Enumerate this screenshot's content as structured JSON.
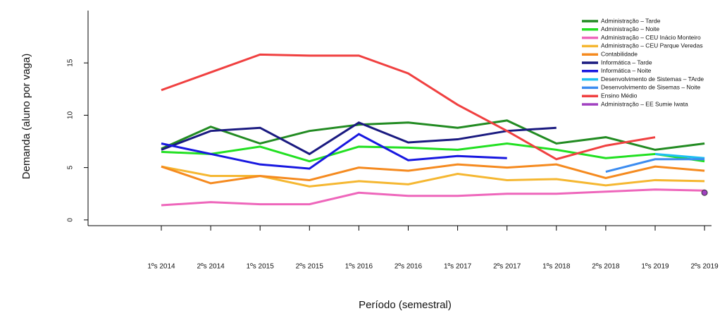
{
  "chart_data": {
    "type": "line",
    "xlabel": "Período (semestral)",
    "ylabel": "Demanda (aluno por vaga)",
    "categories": [
      "1ºs 2014",
      "2ºs 2014",
      "1ºs 2015",
      "2ºs 2015",
      "1ºs 2016",
      "2ºs 2016",
      "1ºs 2017",
      "2ºs 2017",
      "1ºs 2018",
      "2ºs 2018",
      "1ºs 2019",
      "2ºs 2019"
    ],
    "ylim": [
      -0.55,
      20
    ],
    "yticks": [
      0,
      5,
      10,
      15
    ],
    "legend": "top-right",
    "series": [
      {
        "name": "Administração – Tarde",
        "color": "#228b22",
        "values": [
          6.8,
          8.9,
          7.3,
          8.5,
          9.1,
          9.3,
          8.8,
          9.5,
          7.3,
          7.9,
          6.7,
          7.3
        ]
      },
      {
        "name": "Administração – Noite",
        "color": "#22e022",
        "values": [
          6.5,
          6.3,
          7.0,
          5.6,
          7.0,
          6.9,
          6.7,
          7.3,
          6.7,
          5.9,
          6.3,
          5.6
        ]
      },
      {
        "name": "Administração – CEU Inácio Monteiro",
        "color": "#ee66bb",
        "values": [
          1.4,
          1.7,
          1.5,
          1.5,
          2.6,
          2.3,
          2.3,
          2.5,
          2.5,
          2.7,
          2.9,
          2.8
        ]
      },
      {
        "name": "Administração – CEU Parque Veredas",
        "color": "#f5b731",
        "values": [
          5.1,
          4.2,
          4.2,
          3.2,
          3.7,
          3.4,
          4.4,
          3.8,
          3.9,
          3.3,
          3.8,
          3.7
        ]
      },
      {
        "name": "Contabilidade",
        "color": "#f58a1f",
        "values": [
          5.1,
          3.5,
          4.2,
          3.8,
          5.0,
          4.7,
          5.3,
          5.0,
          5.3,
          4.0,
          5.1,
          4.7
        ]
      },
      {
        "name": "Informática – Tarde",
        "color": "#1a1a80",
        "values": [
          6.7,
          8.5,
          8.8,
          6.3,
          9.3,
          7.4,
          7.7,
          8.5,
          8.8,
          null,
          null,
          null
        ]
      },
      {
        "name": "Informática – Noite",
        "color": "#1818e0",
        "values": [
          7.3,
          6.3,
          5.3,
          4.9,
          8.2,
          5.7,
          6.1,
          5.9,
          null,
          null,
          null,
          null
        ]
      },
      {
        "name": "Desenvolvimento de Sistemas – TArde",
        "color": "#1ec0f0",
        "values": [
          null,
          null,
          null,
          null,
          null,
          null,
          null,
          null,
          null,
          null,
          6.3,
          5.9
        ]
      },
      {
        "name": "Desenvolvimento de Sisemas – Noite",
        "color": "#3c8cf0",
        "values": [
          null,
          null,
          null,
          null,
          null,
          null,
          null,
          null,
          null,
          4.6,
          5.8,
          5.8
        ]
      },
      {
        "name": "Ensino Médio",
        "color": "#f04040",
        "values": [
          12.4,
          14.1,
          15.8,
          15.7,
          15.7,
          14.0,
          11.0,
          8.5,
          5.8,
          7.1,
          7.9,
          null
        ]
      },
      {
        "name": "Administração – EE Sumie Iwata",
        "color": "#a040c0",
        "values": [
          null,
          null,
          null,
          null,
          null,
          null,
          null,
          null,
          null,
          null,
          null,
          2.6
        ]
      }
    ]
  }
}
